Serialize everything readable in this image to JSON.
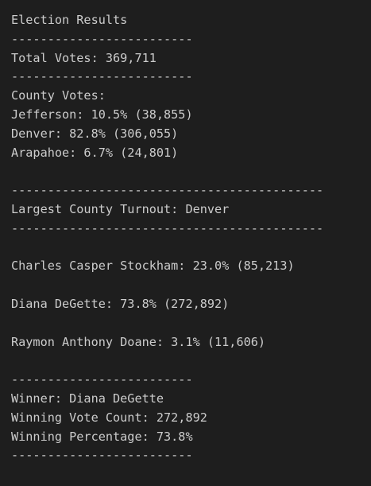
{
  "terminal": {
    "lines": [
      "Election Results",
      "-------------------------",
      "Total Votes: 369,711",
      "-------------------------",
      "County Votes:",
      "Jefferson: 10.5% (38,855)",
      "Denver: 82.8% (306,055)",
      "Arapahoe: 6.7% (24,801)",
      "",
      "-------------------------------------------",
      "Largest County Turnout: Denver",
      "-------------------------------------------",
      "",
      "Charles Casper Stockham: 23.0% (85,213)",
      "",
      "Diana DeGette: 73.8% (272,892)",
      "",
      "Raymon Anthony Doane: 3.1% (11,606)",
      "",
      "-------------------------",
      "Winner: Diana DeGette",
      "Winning Vote Count: 272,892",
      "Winning Percentage: 73.8%",
      "-------------------------"
    ]
  }
}
